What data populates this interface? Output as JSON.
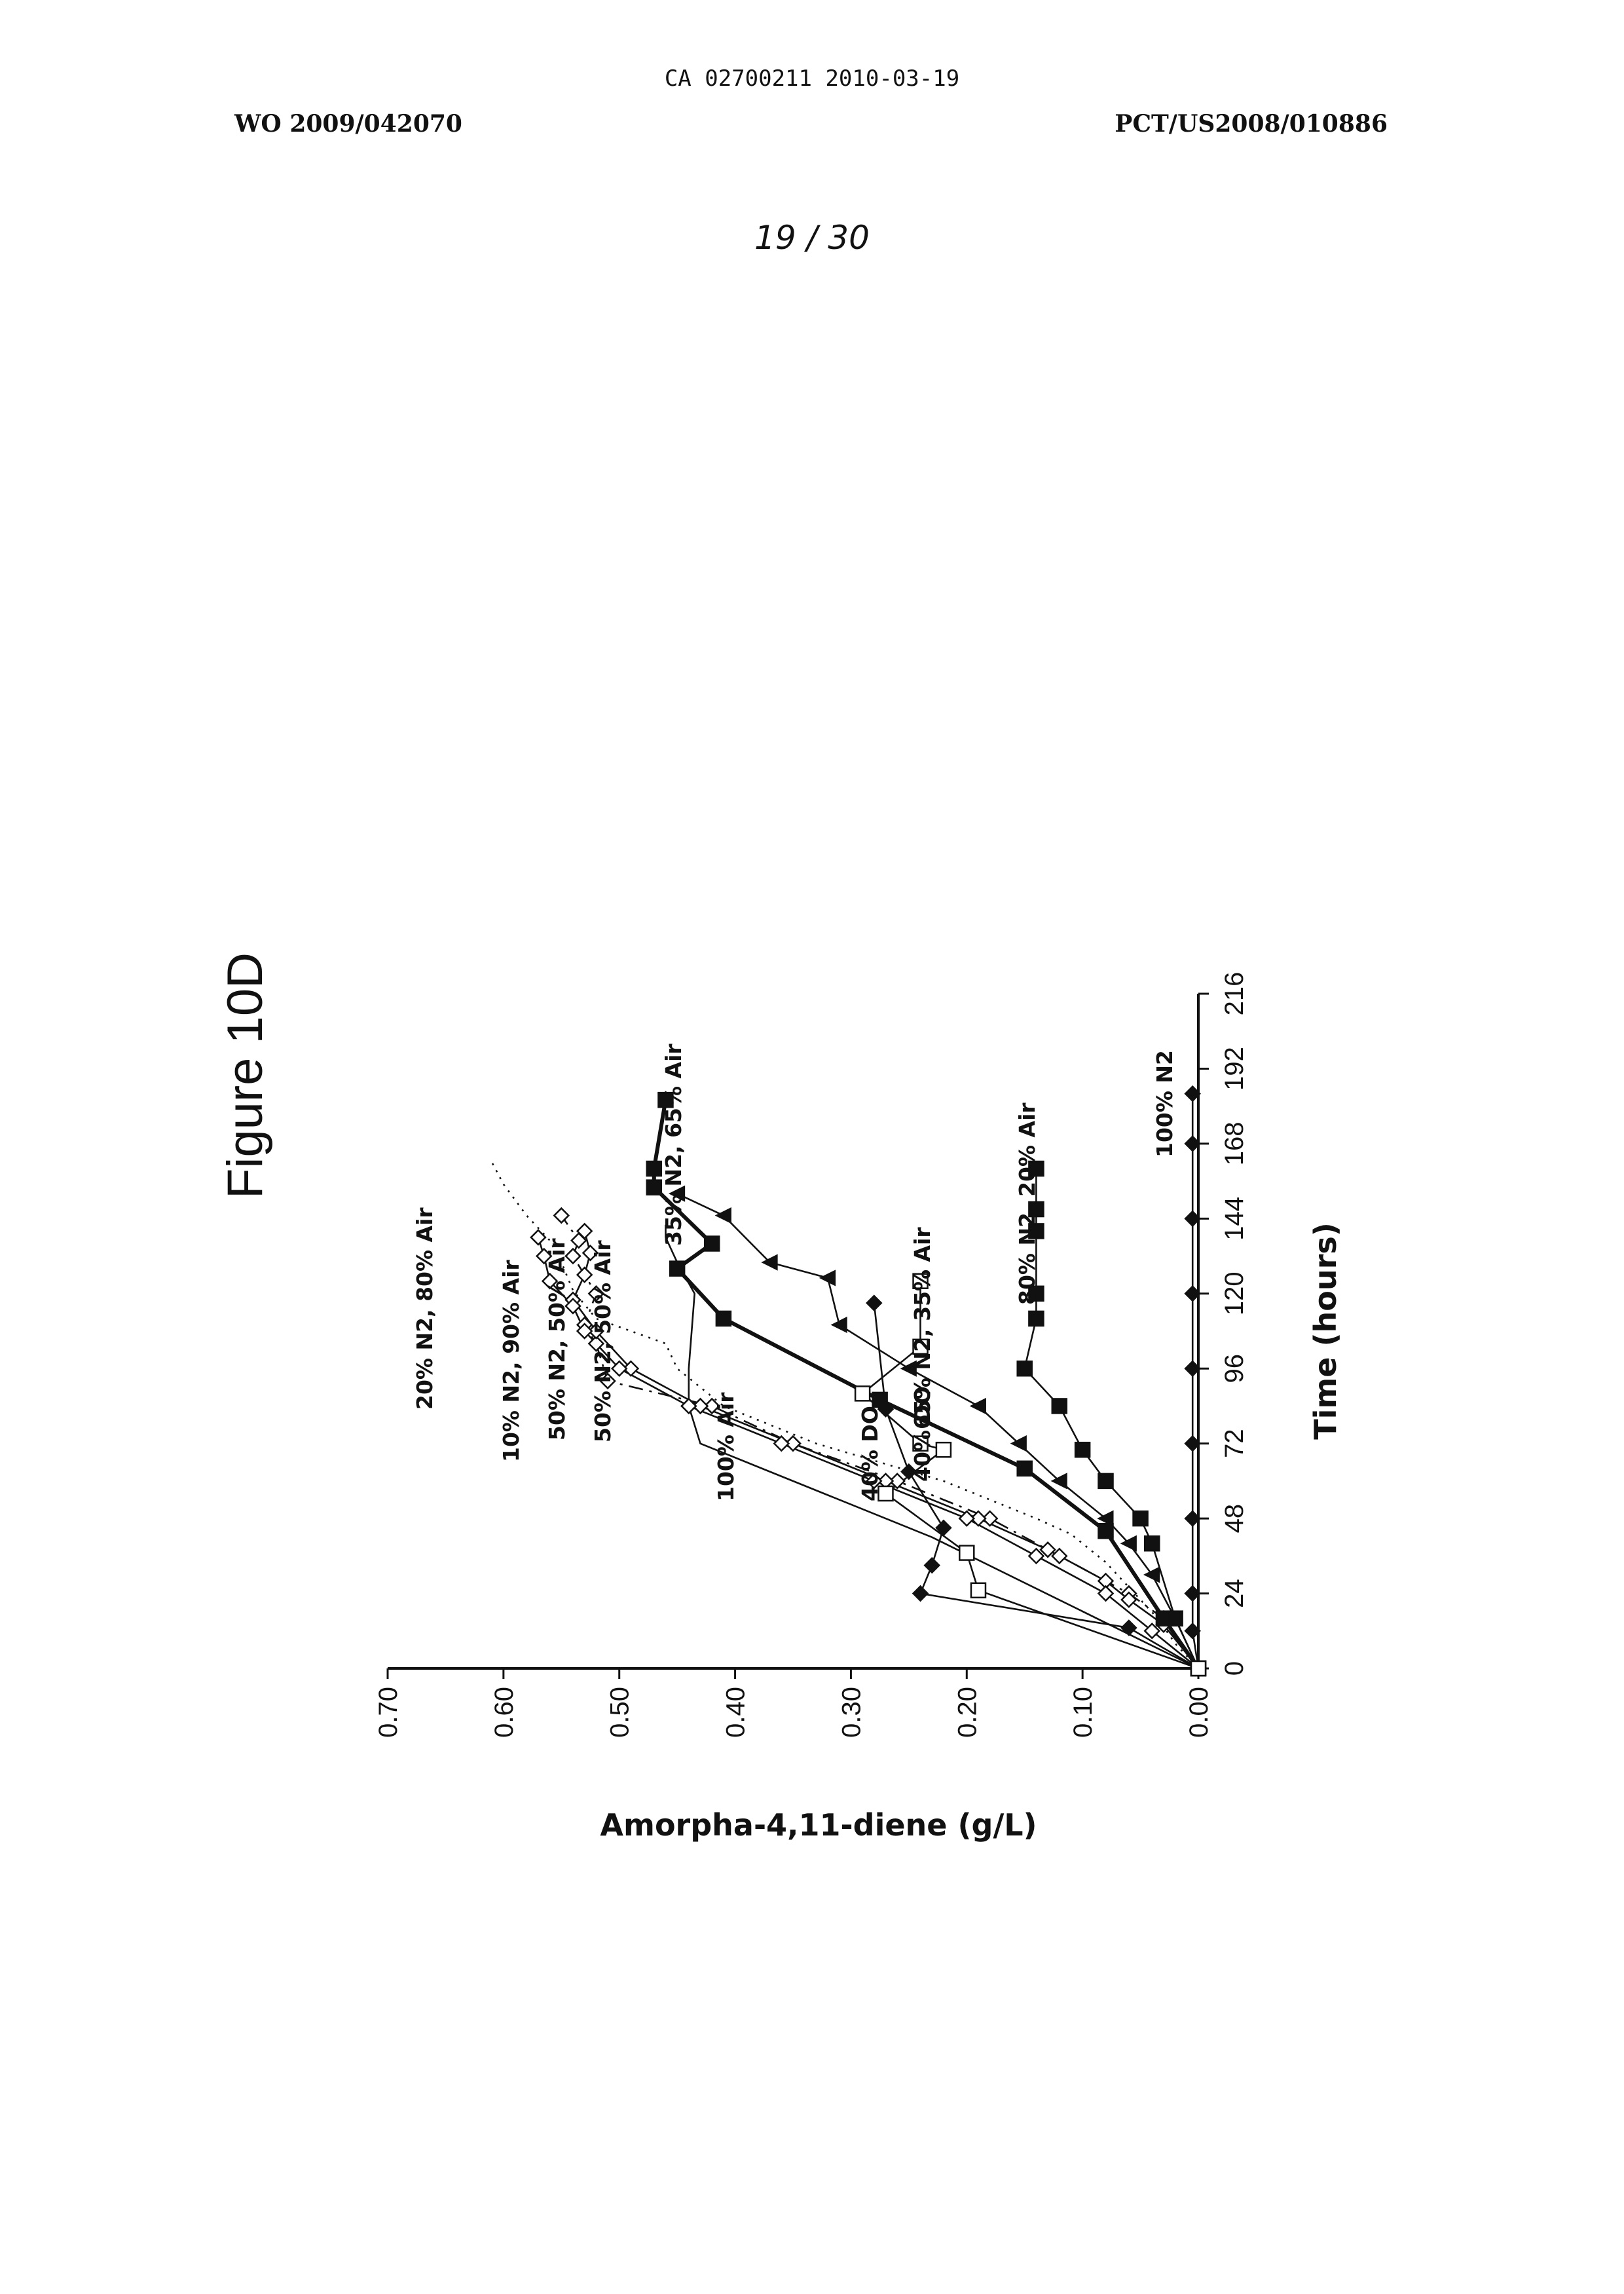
{
  "header": {
    "ca_number": "CA 02700211 2010-03-19",
    "wo_number": "WO 2009/042070",
    "pct_number": "PCT/US2008/010886",
    "page_number": "19 / 30"
  },
  "chart_data": {
    "type": "line",
    "title": "Figure 10D",
    "xlabel": "Time (hours)",
    "ylabel": "Amorpha-4,11-diene (g/L)",
    "xlim": [
      0,
      216
    ],
    "ylim": [
      0,
      0.7
    ],
    "x_ticks": [
      "0",
      "24",
      "48",
      "72",
      "96",
      "120",
      "144",
      "168",
      "192",
      "216"
    ],
    "y_ticks": [
      "0.00",
      "0.10",
      "0.20",
      "0.30",
      "0.40",
      "0.50",
      "0.60",
      "0.70"
    ],
    "grid": false,
    "series": [
      {
        "name": "10% N2, 90% Air",
        "style": "dotted",
        "marker": "none",
        "x": [
          0,
          8,
          16,
          24,
          34,
          43,
          48,
          60,
          72,
          84,
          96,
          104,
          112,
          121,
          130,
          137,
          145,
          155,
          162
        ],
        "y": [
          0,
          0.02,
          0.035,
          0.055,
          0.08,
          0.11,
          0.14,
          0.22,
          0.33,
          0.41,
          0.45,
          0.46,
          0.52,
          0.54,
          0.55,
          0.56,
          0.58,
          0.6,
          0.61
        ]
      },
      {
        "name": "50% N2, 50% Air",
        "style": "dashed",
        "marker": "diamond-open",
        "x": [
          0,
          16,
          24,
          36,
          48,
          60,
          72,
          84,
          92,
          104,
          110,
          120,
          132,
          137,
          145
        ],
        "y": [
          0,
          0.03,
          0.06,
          0.12,
          0.18,
          0.26,
          0.35,
          0.42,
          0.51,
          0.52,
          0.53,
          0.52,
          0.54,
          0.535,
          0.55
        ]
      },
      {
        "name": "50% N2, 50% Air",
        "style": "solid",
        "marker": "diamond-open",
        "x": [
          0,
          14,
          22,
          28,
          38,
          48,
          60,
          72,
          84,
          96,
          108,
          118,
          126,
          133,
          140
        ],
        "y": [
          0,
          0.03,
          0.06,
          0.08,
          0.13,
          0.19,
          0.27,
          0.35,
          0.43,
          0.49,
          0.52,
          0.54,
          0.53,
          0.525,
          0.53
        ]
      },
      {
        "name": "20% N2, 80% Air",
        "style": "solid",
        "marker": "diamond-open",
        "x": [
          0,
          12,
          24,
          36,
          48,
          60,
          72,
          84,
          96,
          108,
          116,
          124,
          132,
          138
        ],
        "y": [
          0,
          0.04,
          0.08,
          0.14,
          0.2,
          0.28,
          0.36,
          0.44,
          0.5,
          0.53,
          0.54,
          0.56,
          0.565,
          0.57
        ]
      },
      {
        "name": "35% N2, 65% Air",
        "style": "bold",
        "marker": "square-filled",
        "x": [
          0,
          16,
          44,
          64,
          86,
          112,
          128,
          136,
          154,
          160,
          182
        ],
        "y": [
          0,
          0.03,
          0.08,
          0.15,
          0.275,
          0.41,
          0.45,
          0.42,
          0.47,
          0.47,
          0.46
        ]
      },
      {
        "name": "100% Air",
        "style": "solid",
        "marker": "none",
        "x": [
          0,
          42,
          72,
          84,
          96,
          120,
          130,
          138,
          142
        ],
        "y": [
          0,
          0.23,
          0.43,
          0.44,
          0.44,
          0.435,
          0.45,
          0.46,
          0.46
        ]
      },
      {
        "name": "65% N2, 35% Air",
        "style": "solid",
        "marker": "triangle-filled",
        "x": [
          0,
          16,
          30,
          40,
          48,
          60,
          72,
          84,
          96,
          110,
          125,
          130,
          145,
          152
        ],
        "y": [
          0,
          0.02,
          0.04,
          0.06,
          0.08,
          0.12,
          0.155,
          0.19,
          0.25,
          0.31,
          0.32,
          0.37,
          0.41,
          0.45
        ]
      },
      {
        "name": "80% N2, 20% Air",
        "style": "solid",
        "marker": "square-filled",
        "x": [
          0,
          16,
          40,
          48,
          60,
          70,
          84,
          96,
          112,
          120,
          140,
          147,
          160
        ],
        "y": [
          0,
          0.02,
          0.04,
          0.05,
          0.08,
          0.1,
          0.12,
          0.15,
          0.14,
          0.14,
          0.14,
          0.14,
          0.14
        ]
      },
      {
        "name": "100% N2",
        "style": "solid",
        "marker": "diamond-filled",
        "x": [
          0,
          12,
          24,
          48,
          72,
          96,
          120,
          144,
          168,
          184
        ],
        "y": [
          0,
          0.005,
          0.005,
          0.005,
          0.005,
          0.005,
          0.005,
          0.005,
          0.005,
          0.005
        ]
      },
      {
        "name": "40% DO",
        "style": "solid",
        "marker": "diamond-filled",
        "x": [
          0,
          13,
          24,
          33,
          45,
          63,
          83,
          117
        ],
        "y": [
          0,
          0.06,
          0.24,
          0.23,
          0.22,
          0.25,
          0.27,
          0.28
        ]
      },
      {
        "name": "40% DO",
        "style": "solid",
        "marker": "square-open",
        "x": [
          0,
          25,
          37,
          56,
          70,
          72,
          88,
          103,
          124
        ],
        "y": [
          0,
          0.19,
          0.2,
          0.27,
          0.22,
          0.24,
          0.29,
          0.24,
          0.24
        ]
      }
    ]
  }
}
